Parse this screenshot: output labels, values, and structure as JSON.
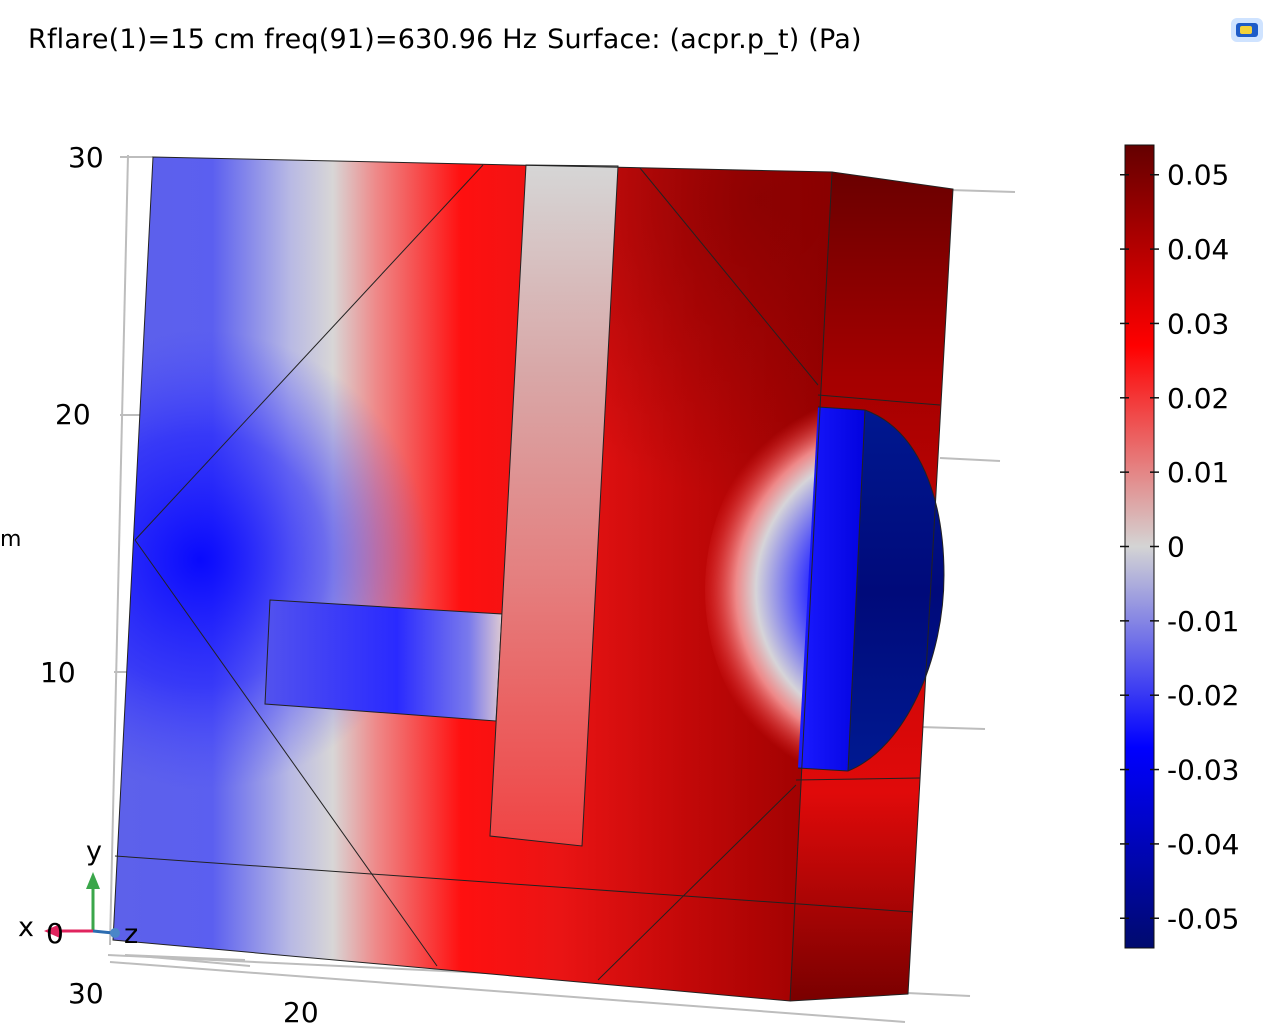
{
  "title": {
    "param": "Rflare(1)=15 cm freq(91)=630.96 Hz",
    "surface": "Surface: (acpr.p_t) (Pa)"
  },
  "axes": {
    "y_ticks": [
      "30",
      "20",
      "10"
    ],
    "z_ticks": [
      "30",
      "20"
    ],
    "cut_label": "m",
    "origin_label": "0"
  },
  "triad": {
    "x": "x",
    "y": "y",
    "z": "z"
  },
  "colorbar": {
    "ticks": [
      "0.05",
      "0.04",
      "0.03",
      "0.02",
      "0.01",
      "0",
      "-0.01",
      "-0.02",
      "-0.03",
      "-0.04",
      "-0.05"
    ],
    "range": [
      -0.054,
      0.054
    ],
    "colormap": [
      "#000a6e",
      "#0000ff",
      "#d4d4d4",
      "#ff0000",
      "#640000"
    ]
  },
  "colors": {
    "deep_blue": "#000a6e",
    "blue": "#0000ff",
    "neutral": "#d4d4d4",
    "red": "#ff0000",
    "dark_red": "#640000",
    "triad_x": "#e0245e",
    "triad_y": "#3aa64a",
    "triad_z": "#2b6cb0"
  }
}
